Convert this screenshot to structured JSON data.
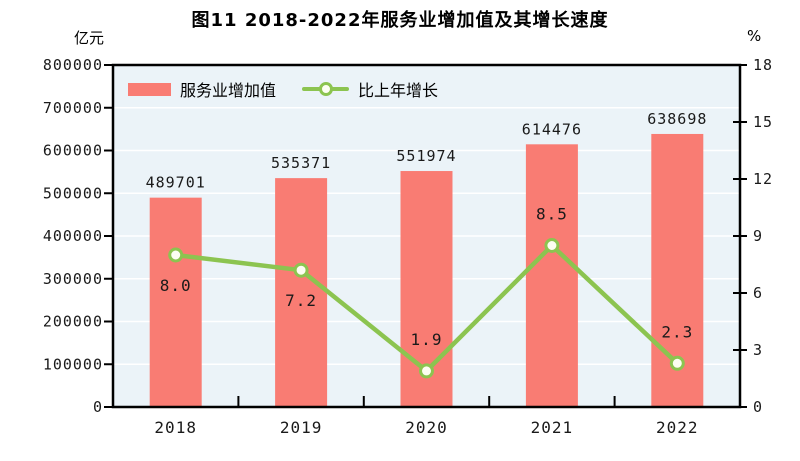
{
  "figure": {
    "title": "图11  2018-2022年服务业增加值及其增长速度",
    "left_axis_unit": "亿元",
    "right_axis_unit": "%"
  },
  "colors": {
    "bar": "#f97c73",
    "line": "#8cc450",
    "marker_fill": "#fdfef2",
    "plot_bg": "#ebf3f8",
    "grid": "#ffffff",
    "axis": "#000000"
  },
  "chart_data": {
    "type": "bar",
    "title": "图11  2018-2022年服务业增加值及其增长速度",
    "categories": [
      "2018",
      "2019",
      "2020",
      "2021",
      "2022"
    ],
    "series": [
      {
        "name": "服务业增加值",
        "type": "bar",
        "axis": "left",
        "values": [
          489701,
          535371,
          551974,
          614476,
          638698
        ]
      },
      {
        "name": "比上年增长",
        "type": "line",
        "axis": "right",
        "values": [
          8.0,
          7.2,
          1.9,
          8.5,
          2.3
        ],
        "value_label_position": [
          "below",
          "below",
          "above",
          "above",
          "above"
        ]
      }
    ],
    "left_axis": {
      "label": "亿元",
      "min": 0,
      "max": 800000,
      "step": 100000,
      "ticks": [
        "800000",
        "700000",
        "600000",
        "500000",
        "400000",
        "300000",
        "200000",
        "100000",
        "0"
      ]
    },
    "right_axis": {
      "label": "%",
      "min": 0,
      "max": 18,
      "step": 3,
      "ticks": [
        "18",
        "15",
        "12",
        "9",
        "6",
        "3",
        "0"
      ]
    },
    "grid": "horizontal",
    "legend_position": "top-left-inside"
  }
}
